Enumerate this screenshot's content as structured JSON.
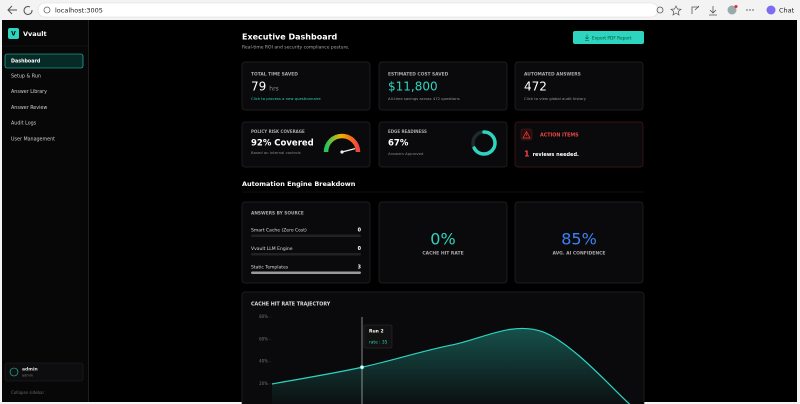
{
  "browser": {
    "url": "localhost:3005",
    "chat": "Chat"
  },
  "sidebar": {
    "logo": "V",
    "brand": "Vvault",
    "nav": [
      "Dashboard",
      "Setup & Run",
      "Answer Library",
      "Answer Review",
      "Audit Logs",
      "User Management"
    ],
    "user": {
      "name": "admin",
      "role": "admin"
    },
    "collapse": "Collapse sidebar"
  },
  "header": {
    "title": "Executive Dashboard",
    "subtitle": "Real-time ROI and security compliance posture.",
    "export": "Export PDF Report"
  },
  "kpis": [
    {
      "label": "TOTAL TIME SAVED",
      "value": "79",
      "unit": "hrs",
      "note": "Click to process a new questionnaire"
    },
    {
      "label": "ESTIMATED COST SAVED",
      "value": "$11,800",
      "note": "All-time savings across 472 questions"
    },
    {
      "label": "AUTOMATED ANSWERS",
      "value": "472",
      "note": "Click to view global audit history"
    }
  ],
  "status": {
    "coverage": {
      "label": "POLICY RISK COVERAGE",
      "value": 92,
      "text": "92% Covered",
      "note": "Based on internal controls"
    },
    "readiness": {
      "label": "EDGE READINESS",
      "value": 67,
      "text": "67%",
      "note": "Answers Approved"
    },
    "actions": {
      "label": "ACTION ITEMS",
      "count": "1",
      "text": "reviews needed."
    }
  },
  "section": "Automation Engine Breakdown",
  "sources": {
    "title": "ANSWERS BY SOURCE",
    "rows": [
      {
        "name": "Smart Cache (Zero Cost)",
        "value": 0
      },
      {
        "name": "Vvault LLM Engine",
        "value": 0
      },
      {
        "name": "Static Templates",
        "value": 3
      }
    ]
  },
  "metrics": [
    {
      "value": "0%",
      "label": "CACHE HIT RATE",
      "color": "#2dd4bf"
    },
    {
      "value": "85%",
      "label": "AVG. AI CONFIDENCE",
      "color": "#3b82f6"
    }
  ],
  "chart_data": {
    "type": "area",
    "title": "CACHE HIT RATE TRAJECTORY",
    "categories": [
      null,
      "Run 2",
      null,
      null,
      null
    ],
    "series": [
      {
        "color": "#2dd4bf",
        "values": [
          20,
          35,
          55,
          67,
          0
        ],
        "value_labels": [
          null,
          "rate : 35",
          null,
          null,
          null
        ]
      }
    ],
    "ylim": [
      0,
      80
    ],
    "yticks": [
      {
        "value": 20,
        "label": "20%"
      },
      {
        "value": 40,
        "label": "40%"
      },
      {
        "value": 60,
        "label": "60%"
      },
      {
        "value": 80,
        "label": "80%"
      }
    ],
    "grid": false
  }
}
